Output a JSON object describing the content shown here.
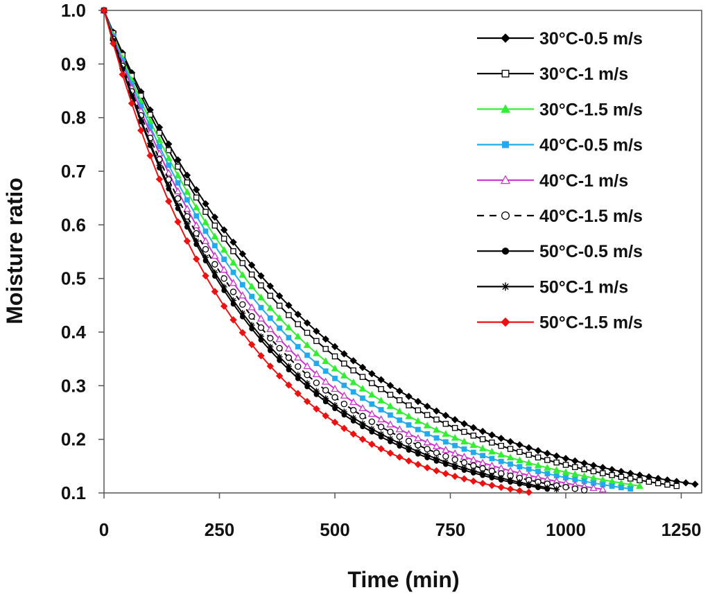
{
  "chart_data": {
    "type": "line",
    "title": "",
    "xlabel": "Time (min)",
    "ylabel": "Moisture ratio",
    "xlim": [
      0,
      1300
    ],
    "ylim": [
      0.1,
      1.0
    ],
    "xticks": [
      "0",
      "250",
      "500",
      "750",
      "1000",
      "1250"
    ],
    "yticks": [
      "0.1",
      "0.2",
      "0.3",
      "0.4",
      "0.5",
      "0.6",
      "0.7",
      "0.8",
      "0.9",
      "1.0"
    ],
    "grid": false,
    "legend": "top-right",
    "series": [
      {
        "name": "30°C-0.5 m/s",
        "color": "#000000",
        "marker": "filled-diamond",
        "dash": false,
        "x_end": 1280,
        "k": 0.0022
      },
      {
        "name": "30°C-1 m/s",
        "color": "#000000",
        "marker": "open-square",
        "dash": false,
        "x_end": 1240,
        "k": 0.00232
      },
      {
        "name": "30°C-1.5 m/s",
        "color": "#33ee33",
        "marker": "filled-triangle",
        "dash": false,
        "x_end": 1170,
        "k": 0.00248
      },
      {
        "name": "40°C-0.5 m/s",
        "color": "#22aaee",
        "marker": "filled-square",
        "dash": false,
        "x_end": 1150,
        "k": 0.00262
      },
      {
        "name": "40°C-1 m/s",
        "color": "#cc33cc",
        "marker": "open-triangle",
        "dash": false,
        "x_end": 1080,
        "k": 0.00278
      },
      {
        "name": "40°C-1.5 m/s",
        "color": "#000000",
        "marker": "open-circle",
        "dash": true,
        "x_end": 1050,
        "k": 0.00292
      },
      {
        "name": "50°C-0.5 m/s",
        "color": "#000000",
        "marker": "filled-circle",
        "dash": false,
        "x_end": 960,
        "k": 0.00312
      },
      {
        "name": "50°C-1 m/s",
        "color": "#000000",
        "marker": "star",
        "dash": false,
        "x_end": 990,
        "k": 0.00306
      },
      {
        "name": "50°C-1.5 m/s",
        "color": "#ee1111",
        "marker": "filled-diamond",
        "dash": false,
        "x_end": 930,
        "k": 0.0034
      }
    ]
  }
}
